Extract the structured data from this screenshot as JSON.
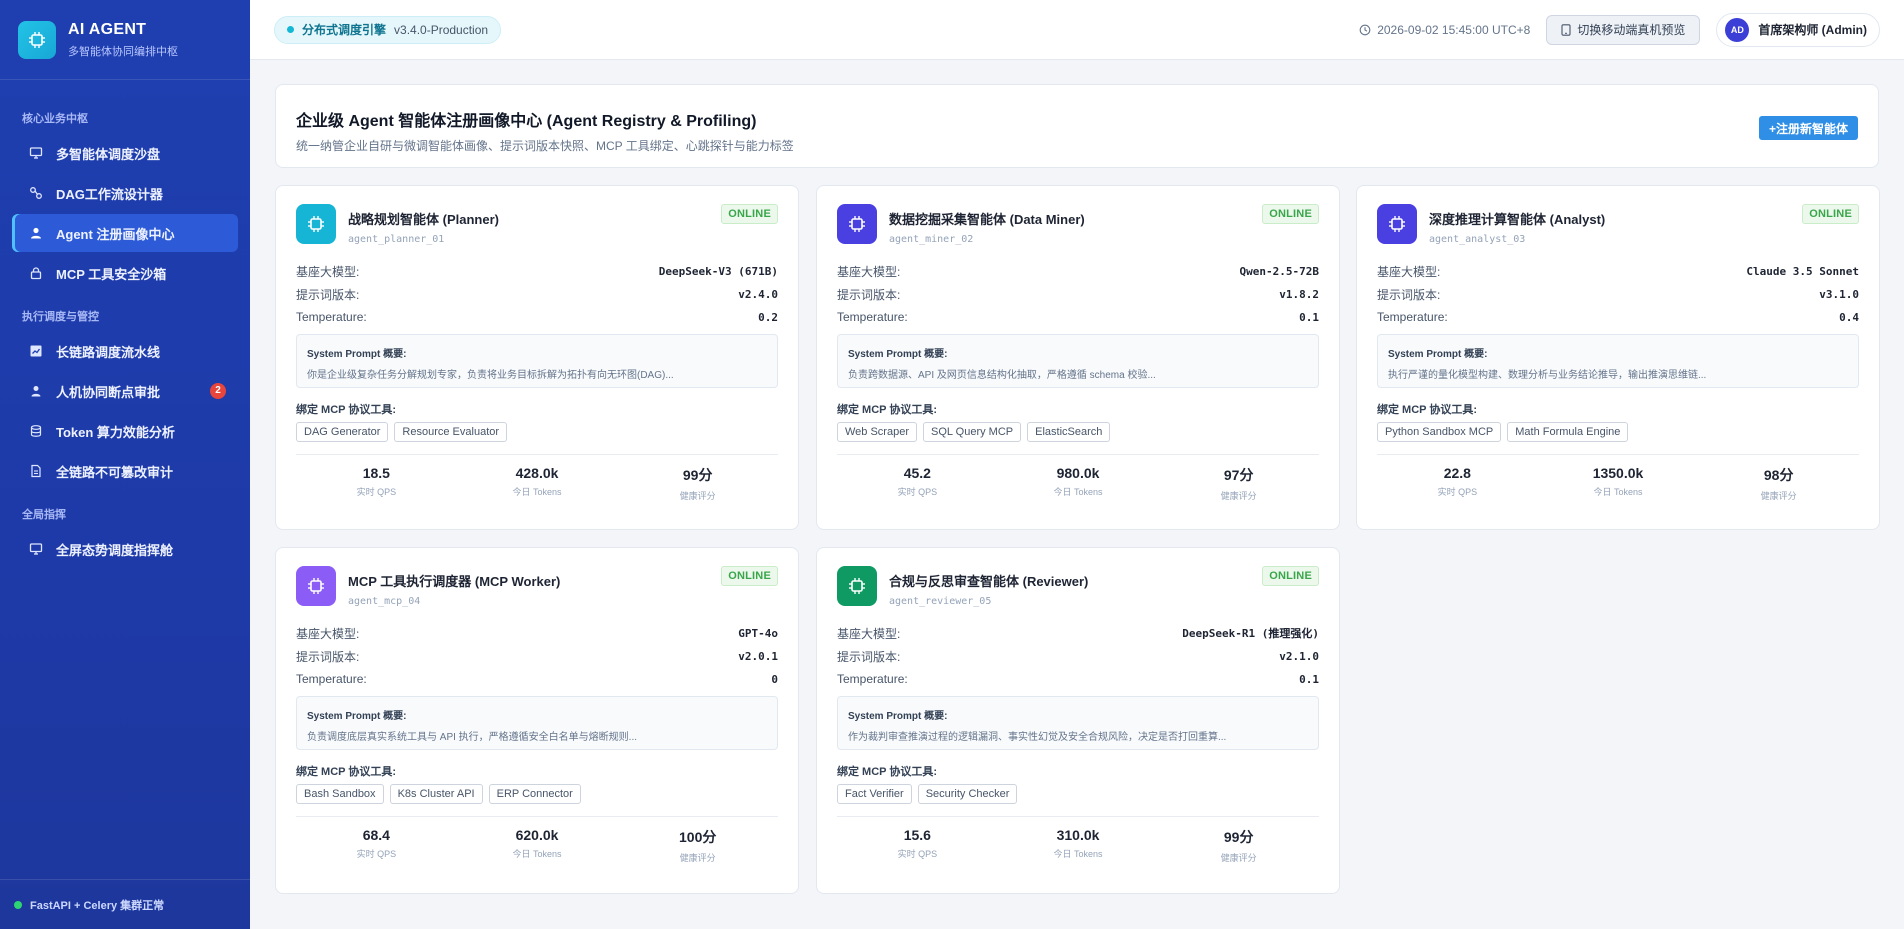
{
  "brand": {
    "title": "AI AGENT",
    "subtitle": "多智能体协同编排中枢"
  },
  "sidebar": {
    "sections": [
      {
        "label": "核心业务中枢"
      },
      {
        "label": "执行调度与管控"
      },
      {
        "label": "全局指挥"
      }
    ],
    "items": [
      {
        "label": "多智能体调度沙盘",
        "icon": "monitor-icon"
      },
      {
        "label": "DAG工作流设计器",
        "icon": "workflow-icon"
      },
      {
        "label": "Agent 注册画像中心",
        "icon": "user-icon",
        "active": true
      },
      {
        "label": "MCP 工具安全沙箱",
        "icon": "lock-icon"
      },
      {
        "label": "长链路调度流水线",
        "icon": "chart-icon"
      },
      {
        "label": "人机协同断点审批",
        "icon": "person-icon",
        "badge": "2"
      },
      {
        "label": "Token 算力效能分析",
        "icon": "database-icon"
      },
      {
        "label": "全链路不可篡改审计",
        "icon": "file-icon"
      },
      {
        "label": "全屏态势调度指挥舱",
        "icon": "monitor-icon"
      }
    ],
    "footer": "FastAPI + Celery 集群正常"
  },
  "topbar": {
    "engine_name": "分布式调度引擎",
    "engine_version": "v3.4.0-Production",
    "datetime": "2026-09-02 15:45:00 UTC+8",
    "mobile_button": "切换移动端真机预览",
    "user_initials": "AD",
    "user_name": "首席架构师 (Admin)"
  },
  "header": {
    "title": "企业级 Agent 智能体注册画像中心 (Agent Registry & Profiling)",
    "subtitle": "统一纳管企业自研与微调智能体画像、提示词版本快照、MCP 工具绑定、心跳探针与能力标签",
    "register_button": "+注册新智能体"
  },
  "labels": {
    "model": "基座大模型:",
    "prompt_version": "提示词版本:",
    "temperature": "Temperature:",
    "prompt_summary": "System Prompt 概要:",
    "tools": "绑定 MCP 协议工具:",
    "qps": "实时 QPS",
    "tokens": "今日 Tokens",
    "health": "健康评分"
  },
  "agents": [
    {
      "name": "战略规划智能体 (Planner)",
      "id": "agent_planner_01",
      "status": "ONLINE",
      "color": "#16b5d6",
      "model": "DeepSeek-V3 (671B)",
      "prompt_version": "v2.4.0",
      "temperature": "0.2",
      "prompt": "你是企业级复杂任务分解规划专家，负责将业务目标拆解为拓扑有向无环图(DAG)...",
      "tools": [
        "DAG Generator",
        "Resource Evaluator"
      ],
      "qps": "18.5",
      "tokens": "428.0k",
      "health": "99分"
    },
    {
      "name": "数据挖掘采集智能体 (Data Miner)",
      "id": "agent_miner_02",
      "status": "ONLINE",
      "color": "#4a3fe0",
      "model": "Qwen-2.5-72B",
      "prompt_version": "v1.8.2",
      "temperature": "0.1",
      "prompt": "负责跨数据源、API 及网页信息结构化抽取，严格遵循 schema 校验...",
      "tools": [
        "Web Scraper",
        "SQL Query MCP",
        "ElasticSearch"
      ],
      "qps": "45.2",
      "tokens": "980.0k",
      "health": "97分"
    },
    {
      "name": "深度推理计算智能体 (Analyst)",
      "id": "agent_analyst_03",
      "status": "ONLINE",
      "color": "#4a3fe0",
      "model": "Claude 3.5 Sonnet",
      "prompt_version": "v3.1.0",
      "temperature": "0.4",
      "prompt": "执行严谨的量化模型构建、数理分析与业务结论推导，输出推演思维链...",
      "tools": [
        "Python Sandbox MCP",
        "Math Formula Engine"
      ],
      "qps": "22.8",
      "tokens": "1350.0k",
      "health": "98分"
    },
    {
      "name": "MCP 工具执行调度器 (MCP Worker)",
      "id": "agent_mcp_04",
      "status": "ONLINE",
      "color": "#8b5cf6",
      "model": "GPT-4o",
      "prompt_version": "v2.0.1",
      "temperature": "0",
      "prompt": "负责调度底层真实系统工具与 API 执行，严格遵循安全白名单与熔断规则...",
      "tools": [
        "Bash Sandbox",
        "K8s Cluster API",
        "ERP Connector"
      ],
      "qps": "68.4",
      "tokens": "620.0k",
      "health": "100分"
    },
    {
      "name": "合规与反思审查智能体 (Reviewer)",
      "id": "agent_reviewer_05",
      "status": "ONLINE",
      "color": "#0f9a63",
      "model": "DeepSeek-R1 (推理强化)",
      "prompt_version": "v2.1.0",
      "temperature": "0.1",
      "prompt": "作为裁判审查推演过程的逻辑漏洞、事实性幻觉及安全合规风险，决定是否打回重算...",
      "tools": [
        "Fact Verifier",
        "Security Checker"
      ],
      "qps": "15.6",
      "tokens": "310.0k",
      "health": "99分"
    }
  ]
}
